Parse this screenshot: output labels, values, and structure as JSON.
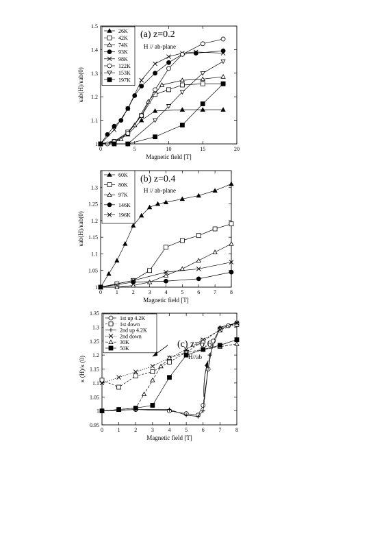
{
  "chart_data": [
    {
      "type": "line",
      "panel": "a",
      "title": "(a) z=0.2",
      "subtitle": "H // ab-plane",
      "xlabel": "Magnetic field [T]",
      "ylabel": "κab(H)/κab(0)",
      "xlim": [
        0,
        20
      ],
      "ylim": [
        1.0,
        1.5
      ],
      "xticks": [
        0,
        5,
        10,
        15,
        20
      ],
      "yticks": [
        1,
        1.1,
        1.2,
        1.3,
        1.4,
        1.5
      ],
      "legend_position": "top-left",
      "series": [
        {
          "name": "26K",
          "marker": "filled-triangle",
          "x": [
            0,
            2,
            4,
            6,
            8,
            12,
            15,
            18
          ],
          "y": [
            1.0,
            1.005,
            1.04,
            1.1,
            1.14,
            1.145,
            1.145,
            1.145
          ]
        },
        {
          "name": "42K",
          "marker": "open-square",
          "x": [
            0,
            2,
            4,
            6,
            8,
            10,
            12,
            15,
            18
          ],
          "y": [
            1.0,
            1.01,
            1.05,
            1.12,
            1.21,
            1.23,
            1.25,
            1.255,
            1.255
          ]
        },
        {
          "name": "74K",
          "marker": "open-triangle",
          "x": [
            0,
            3,
            5,
            7,
            9,
            12,
            15,
            18
          ],
          "y": [
            1.0,
            1.02,
            1.08,
            1.18,
            1.25,
            1.27,
            1.275,
            1.285
          ]
        },
        {
          "name": "93K",
          "marker": "filled-circle",
          "x": [
            0,
            1,
            2,
            3,
            4,
            5,
            6,
            8,
            10,
            12,
            14,
            18
          ],
          "y": [
            1.0,
            1.04,
            1.075,
            1.1,
            1.15,
            1.205,
            1.245,
            1.3,
            1.345,
            1.38,
            1.385,
            1.395
          ]
        },
        {
          "name": "98K",
          "marker": "cross",
          "x": [
            0,
            2,
            4,
            6,
            8,
            10,
            12,
            14,
            18
          ],
          "y": [
            1.0,
            1.06,
            1.15,
            1.27,
            1.34,
            1.37,
            1.385,
            1.39,
            1.385
          ]
        },
        {
          "name": "122K",
          "marker": "open-circle",
          "x": [
            0,
            1,
            2,
            4,
            6,
            8,
            10,
            12,
            15,
            18
          ],
          "y": [
            1.0,
            1.0,
            1.01,
            1.045,
            1.12,
            1.23,
            1.32,
            1.38,
            1.425,
            1.445
          ]
        },
        {
          "name": "153K",
          "marker": "open-inverted-triangle",
          "x": [
            0,
            4,
            8,
            10,
            12,
            15,
            18
          ],
          "y": [
            1.0,
            1.0,
            1.1,
            1.16,
            1.22,
            1.3,
            1.35
          ]
        },
        {
          "name": "197K",
          "marker": "filled-square",
          "x": [
            0,
            2,
            4,
            8,
            12,
            15,
            18
          ],
          "y": [
            1.0,
            1.0,
            1.0,
            1.03,
            1.08,
            1.17,
            1.255
          ]
        }
      ]
    },
    {
      "type": "line",
      "panel": "b",
      "title": "(b) z=0.4",
      "subtitle": "H // ab-plane",
      "xlabel": "Magnetic field [T]",
      "ylabel": "κab(H)/κab(0)",
      "xlim": [
        0,
        8
      ],
      "ylim": [
        1.0,
        1.35
      ],
      "xticks": [
        0,
        1,
        2,
        3,
        4,
        5,
        6,
        7,
        8
      ],
      "yticks": [
        1,
        1.05,
        1.1,
        1.15,
        1.2,
        1.25,
        1.3
      ],
      "legend_position": "top-left",
      "series": [
        {
          "name": "60K",
          "marker": "filled-triangle",
          "x": [
            0,
            0.5,
            1,
            1.5,
            2,
            2.5,
            3,
            3.5,
            4,
            5,
            6,
            7,
            8
          ],
          "y": [
            1.0,
            1.04,
            1.08,
            1.13,
            1.185,
            1.215,
            1.24,
            1.25,
            1.255,
            1.265,
            1.275,
            1.29,
            1.31
          ]
        },
        {
          "name": "80K",
          "marker": "open-square",
          "x": [
            0,
            1,
            2,
            3,
            4,
            5,
            6,
            7,
            8
          ],
          "y": [
            1.0,
            1.01,
            1.02,
            1.05,
            1.12,
            1.14,
            1.155,
            1.175,
            1.19
          ]
        },
        {
          "name": "97K",
          "marker": "open-triangle",
          "x": [
            0,
            1,
            2,
            3,
            4,
            5,
            6,
            7,
            8
          ],
          "y": [
            1.0,
            1.0,
            1.005,
            1.015,
            1.035,
            1.055,
            1.08,
            1.105,
            1.13
          ]
        },
        {
          "name": "146K",
          "marker": "filled-circle",
          "x": [
            0,
            2,
            4,
            6,
            8
          ],
          "y": [
            1.0,
            1.015,
            1.018,
            1.025,
            1.045
          ]
        },
        {
          "name": "196K",
          "marker": "cross",
          "x": [
            0,
            2,
            4,
            6,
            8
          ],
          "y": [
            1.0,
            1.02,
            1.045,
            1.055,
            1.075
          ]
        }
      ]
    },
    {
      "type": "line",
      "panel": "c",
      "title": "(c) z=0.6",
      "subtitle": "H//ab",
      "xlabel": "Magnetic field [T]",
      "ylabel": "κ (H)/κ (0)",
      "xlim": [
        0,
        8
      ],
      "ylim": [
        0.95,
        1.35
      ],
      "xticks": [
        0,
        1,
        2,
        3,
        4,
        5,
        6,
        7,
        8
      ],
      "yticks": [
        0.95,
        1,
        1.05,
        1.1,
        1.15,
        1.2,
        1.25,
        1.3,
        1.35
      ],
      "legend_position": "top-left",
      "series": [
        {
          "name": "1st up   4.2K",
          "marker": "open-circle",
          "x": [
            0,
            2,
            4,
            5,
            5.7,
            6,
            6.3,
            6.6,
            7,
            7.5,
            8
          ],
          "y": [
            1.0,
            1.005,
            1.0,
            0.99,
            0.985,
            1.02,
            1.15,
            1.25,
            1.295,
            1.305,
            1.315
          ]
        },
        {
          "name": "1st down",
          "marker": "open-square",
          "x": [
            8,
            7,
            6,
            5,
            4,
            3,
            2,
            1,
            0
          ],
          "y": [
            1.31,
            1.29,
            1.25,
            1.21,
            1.175,
            1.14,
            1.125,
            1.085,
            1.11
          ]
        },
        {
          "name": "2nd up   4.2K",
          "marker": "plus",
          "x": [
            0,
            2,
            4,
            5,
            5.7,
            6,
            6.4,
            7,
            8
          ],
          "y": [
            1.0,
            1.005,
            1.005,
            0.985,
            0.98,
            1.0,
            1.2,
            1.3,
            1.315
          ]
        },
        {
          "name": "2nd down",
          "marker": "x",
          "x": [
            8,
            7,
            6,
            5,
            4,
            3,
            2,
            1,
            0
          ],
          "y": [
            1.315,
            1.29,
            1.255,
            1.22,
            1.19,
            1.16,
            1.14,
            1.12,
            1.1
          ]
        },
        {
          "name": "30K",
          "marker": "open-triangle",
          "x": [
            0,
            1,
            2,
            2.5,
            3,
            3.5,
            4,
            5,
            6,
            7,
            8
          ],
          "y": [
            1.0,
            1.005,
            1.01,
            1.06,
            1.11,
            1.16,
            1.19,
            1.21,
            1.22,
            1.23,
            1.24
          ]
        },
        {
          "name": "50K",
          "marker": "filled-square",
          "x": [
            0,
            1,
            2,
            3,
            4,
            5,
            6,
            7,
            8
          ],
          "y": [
            1.0,
            1.005,
            1.01,
            1.02,
            1.12,
            1.2,
            1.22,
            1.235,
            1.255
          ]
        }
      ]
    }
  ]
}
